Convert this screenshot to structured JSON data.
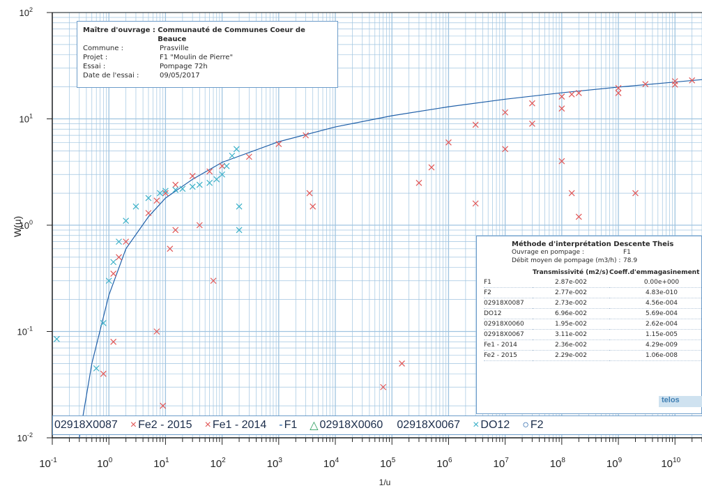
{
  "chart_data": {
    "type": "scatter",
    "title": "",
    "xlabel": "1/u",
    "ylabel": "W(u)",
    "xscale": "log",
    "yscale": "log",
    "xlim": [
      0.1,
      30000000000
    ],
    "ylim": [
      0.01,
      100
    ],
    "grid": true,
    "x_tick_labels": [
      "10-1",
      "100",
      "101",
      "102",
      "103",
      "104",
      "105",
      "106",
      "107",
      "108",
      "109",
      "1010"
    ],
    "y_tick_labels": [
      "10-2",
      "10-1",
      "100",
      "101",
      "102"
    ],
    "series": [
      {
        "name": "F1",
        "kind": "line",
        "color": "#1f5fa8",
        "x": [
          0.3,
          0.5,
          1,
          2,
          5,
          10,
          30,
          100,
          1000,
          10000,
          100000,
          1000000,
          10000000,
          100000000,
          1000000000,
          10000000000,
          30000000000
        ],
        "y": [
          0.01,
          0.05,
          0.22,
          0.6,
          1.2,
          1.8,
          2.7,
          3.9,
          6.1,
          8.4,
          10.7,
          13.0,
          15.3,
          17.6,
          19.9,
          22.2,
          23.4
        ]
      },
      {
        "name": "Fe1 - 2014",
        "kind": "x",
        "color": "#e05555",
        "x": [
          1.2,
          1.5,
          2,
          5,
          7,
          10,
          15,
          30,
          60,
          100,
          300,
          1000,
          3000,
          3500,
          4000,
          300000,
          500000,
          1000000,
          3000000,
          10000000,
          30000000,
          100000000,
          150000000,
          200000000,
          1000000000,
          3000000000,
          10000000000,
          20000000000,
          1.2,
          7,
          9,
          12,
          15,
          40,
          70,
          0.8,
          150000,
          70000
        ],
        "y": [
          0.35,
          0.5,
          0.7,
          1.3,
          1.7,
          2.0,
          2.4,
          2.9,
          3.2,
          3.6,
          4.4,
          5.8,
          7.0,
          2.0,
          1.5,
          2.5,
          3.5,
          6.0,
          8.8,
          11.5,
          14.0,
          16.2,
          17.0,
          17.5,
          19.5,
          21.2,
          22.6,
          23.0,
          0.08,
          0.1,
          0.02,
          0.6,
          0.9,
          1.0,
          0.3,
          0.04,
          0.05,
          0.03
        ]
      },
      {
        "name": "Fe2 - 2015",
        "kind": "x",
        "color": "#e05555",
        "x": [
          3000000,
          10000000,
          30000000,
          100000000,
          1000000000,
          10000000000,
          100000000,
          150000000,
          200000000,
          2000000000
        ],
        "y": [
          1.6,
          5.2,
          9.0,
          12.5,
          17.5,
          21.0,
          4.0,
          2.0,
          1.2,
          2.0
        ]
      },
      {
        "name": "02918X0087",
        "kind": "x",
        "color": "#3ab0c8",
        "x": [
          0.12,
          0.6,
          0.8,
          1,
          1.2,
          1.5,
          2,
          3,
          5,
          8,
          10,
          15,
          20,
          30,
          40,
          60,
          80,
          100,
          120,
          150,
          180,
          200,
          200
        ],
        "y": [
          0.085,
          0.045,
          0.12,
          0.3,
          0.45,
          0.7,
          1.1,
          1.5,
          1.8,
          2.0,
          2.1,
          2.15,
          2.2,
          2.3,
          2.4,
          2.5,
          2.7,
          3.0,
          3.6,
          4.5,
          5.2,
          1.5,
          0.9
        ]
      },
      {
        "name": "02918X0060",
        "kind": "triangle",
        "color": "#2f9e60",
        "x": [],
        "y": []
      },
      {
        "name": "02918X0067",
        "kind": "circle",
        "color": "#3ab0c8",
        "x": [],
        "y": []
      },
      {
        "name": "DO12",
        "kind": "x",
        "color": "#3ab0c8",
        "x": [],
        "y": []
      },
      {
        "name": "F2",
        "kind": "circle",
        "color": "#1f5fa8",
        "x": [],
        "y": []
      }
    ]
  },
  "info_box": {
    "rows": [
      {
        "k": "Maître d'ouvrage :",
        "v": "Communauté de Communes Coeur de Beauce"
      },
      {
        "k": "Commune :",
        "v": "Prasville"
      },
      {
        "k": "Projet :",
        "v": "F1 \"Moulin de Pierre\""
      },
      {
        "k": "Essai :",
        "v": "Pompage 72h"
      },
      {
        "k": "Date de l'essai :",
        "v": "09/05/2017"
      }
    ]
  },
  "method_box": {
    "title": "Méthode d'interprétation Descente Theis",
    "ouvrage_label": "Ouvrage en pompage :",
    "ouvrage_value": "F1",
    "debit_label": "Débit moyen de pompage (m3/h) :",
    "debit_value": "78.9",
    "col_t": "Transmissivité (m2/s)",
    "col_s": "Coeff.d'emmagasinement",
    "rows": [
      {
        "name": "F1",
        "t": "2.87e-002",
        "s": "0.00e+000"
      },
      {
        "name": "F2",
        "t": "2.77e-002",
        "s": "4.83e-010"
      },
      {
        "name": "02918X0087",
        "t": "2.73e-002",
        "s": "4.56e-004"
      },
      {
        "name": "DO12",
        "t": "6.96e-002",
        "s": "5.69e-004"
      },
      {
        "name": "02918X0060",
        "t": "1.95e-002",
        "s": "2.62e-004"
      },
      {
        "name": "02918X0067",
        "t": "3.11e-002",
        "s": "1.15e-005"
      },
      {
        "name": "Fe1 - 2014",
        "t": "2.36e-002",
        "s": "4.29e-009"
      },
      {
        "name": "Fe2 - 2015",
        "t": "2.29e-002",
        "s": "1.06e-008"
      }
    ],
    "logo": "telos"
  },
  "legend": [
    {
      "marker": "",
      "label": "02918X0087"
    },
    {
      "marker": "×",
      "label": "Fe2 - 2015"
    },
    {
      "marker": "×",
      "label": "Fe1 - 2014"
    },
    {
      "marker": "-",
      "label": "F1"
    },
    {
      "marker": "△",
      "label": "02918X0060"
    },
    {
      "marker": "",
      "label": "02918X0067"
    },
    {
      "marker": "×",
      "label": "DO12"
    },
    {
      "marker": "○",
      "label": "F2"
    }
  ],
  "colors": {
    "grid": "#9fc4e0",
    "axis": "#222222",
    "red": "#e05555",
    "cyan": "#3ab0c8",
    "line": "#1f5fa8"
  }
}
